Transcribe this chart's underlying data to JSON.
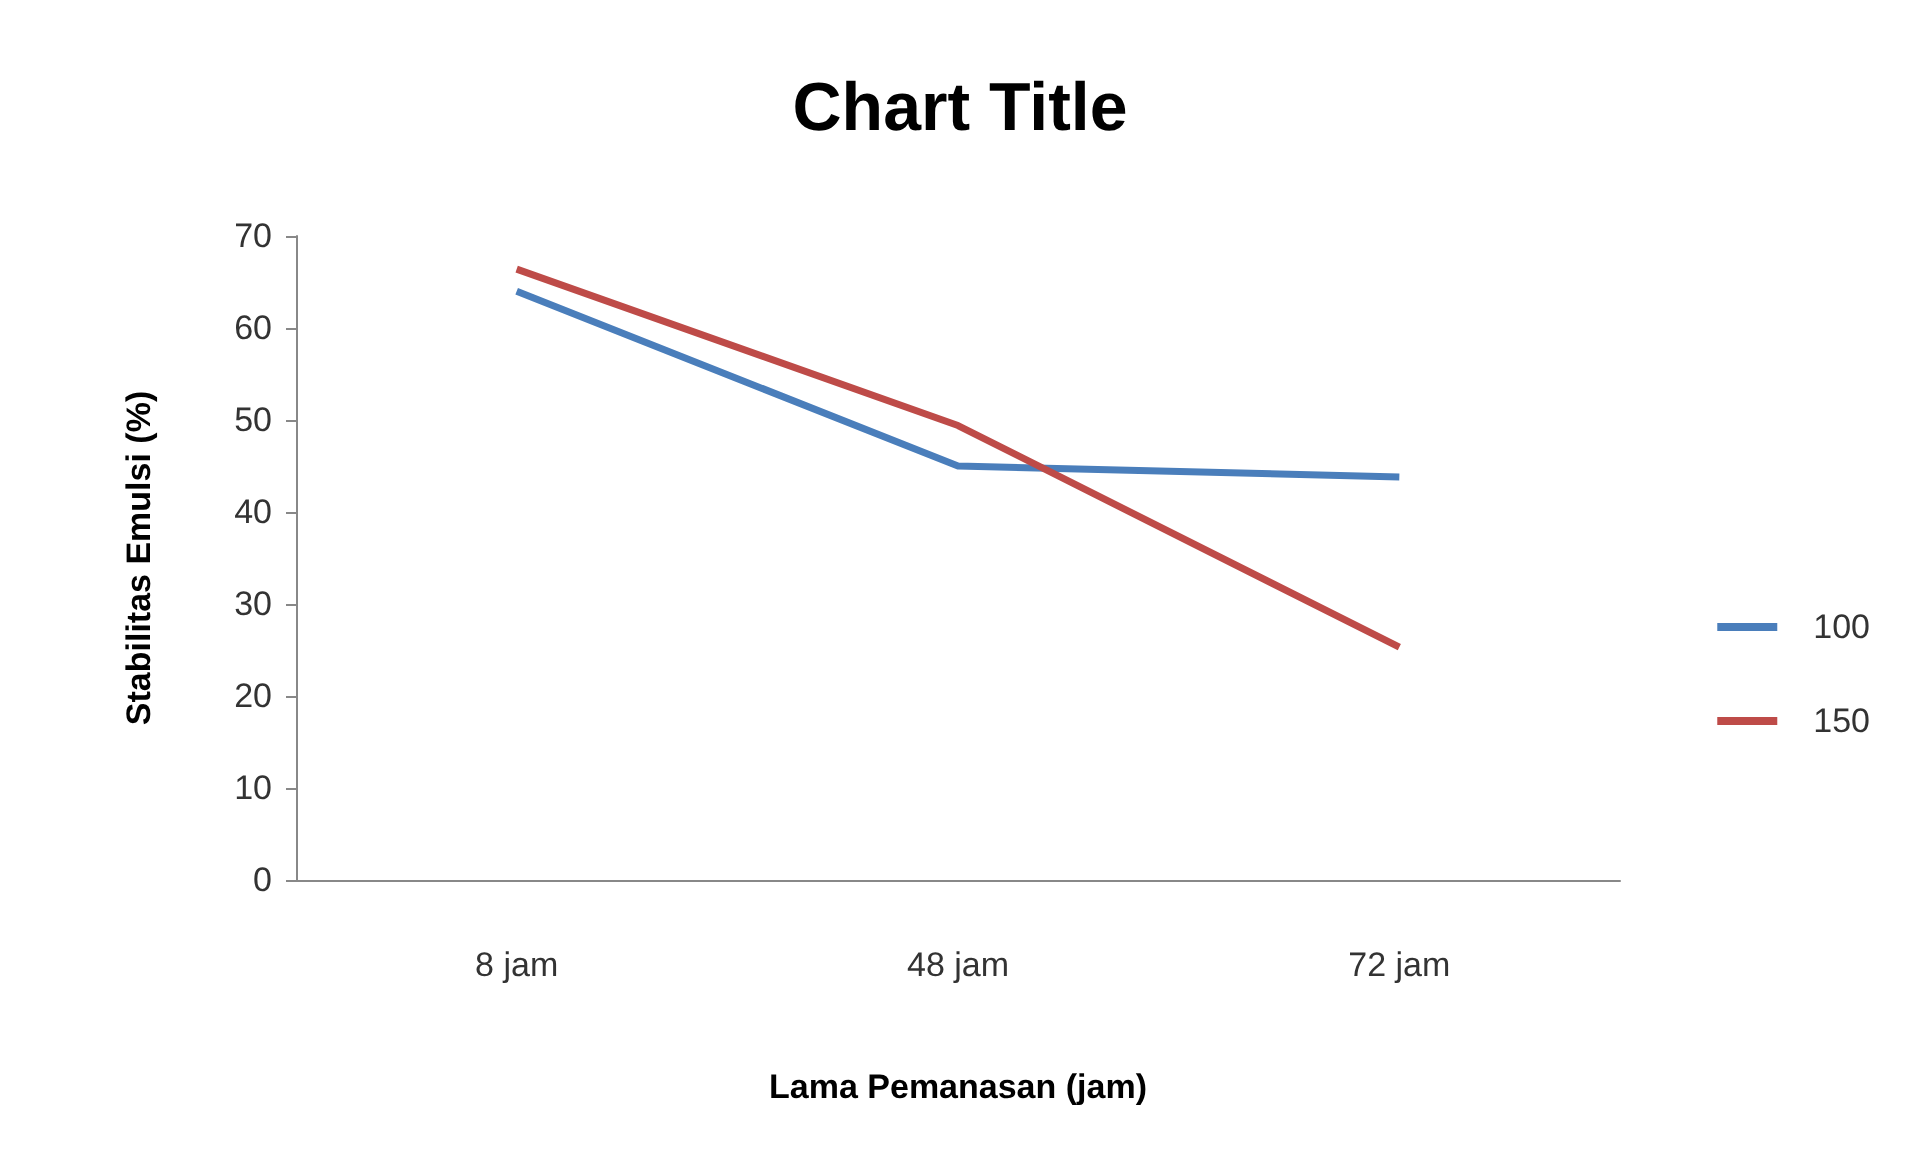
{
  "chart_data": {
    "type": "line",
    "title": "Chart Title",
    "xlabel": "Lama Pemanasan (jam)",
    "ylabel": "Stabilitas Emulsi (%)",
    "categories": [
      "8 jam",
      "48 jam",
      "72 jam"
    ],
    "series": [
      {
        "name": "100",
        "color": "#4a7ebb",
        "values": [
          64,
          45,
          43.8
        ]
      },
      {
        "name": "150",
        "color": "#be4b48",
        "values": [
          66.4,
          49.4,
          25.3
        ]
      }
    ],
    "ylim": [
      0,
      70
    ],
    "yticks": [
      0,
      10,
      20,
      30,
      40,
      50,
      60,
      70
    ],
    "grid": false,
    "legend": "right",
    "marker": "none",
    "line_style": "solid"
  }
}
